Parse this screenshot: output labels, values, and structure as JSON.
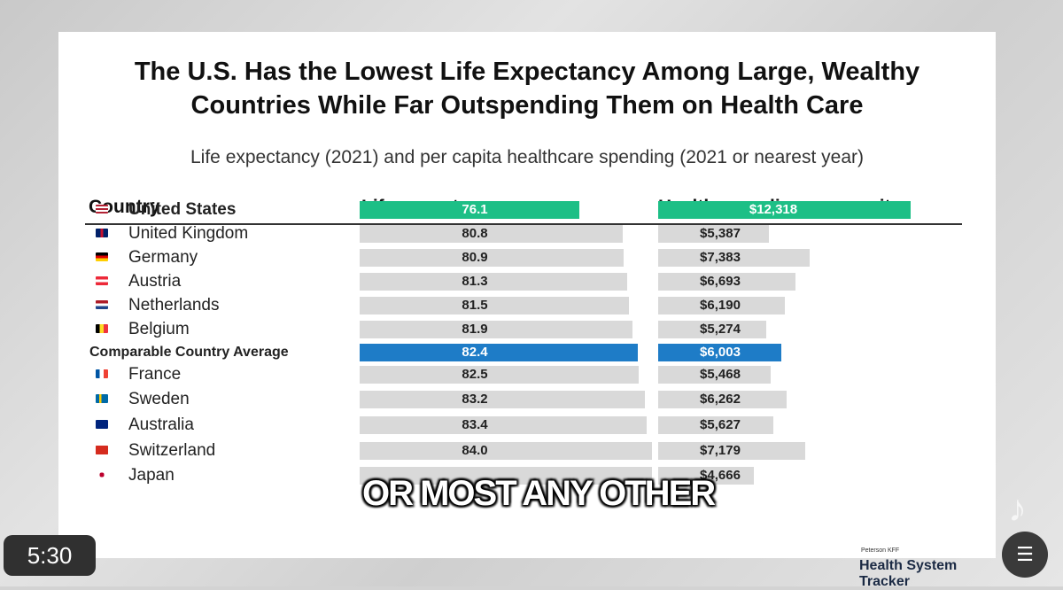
{
  "video": {
    "time": "5:30",
    "caption": "OR MOST ANY OTHER"
  },
  "chart_data": {
    "type": "bar",
    "title": "The U.S. Has the Lowest Life Expectancy Among Large, Wealthy Countries While Far Outspending Them on Health Care",
    "title_line1": "The U.S. Has the Lowest Life Expectancy Among Large, Wealthy",
    "title_line2": "Countries While Far Outspending Them on Health Care",
    "subtitle": "Life expectancy (2021) and per capita healthcare spending (2021 or nearest year)",
    "columns": [
      "Country",
      "Life expectancy",
      "Health spending, per capita"
    ],
    "categories": [
      "United States",
      "United Kingdom",
      "Germany",
      "Austria",
      "Netherlands",
      "Belgium",
      "Comparable Country Average",
      "France",
      "Sweden",
      "Australia",
      "Switzerland",
      "Japan"
    ],
    "series": [
      {
        "name": "Life expectancy",
        "values": [
          76.1,
          80.8,
          80.9,
          81.3,
          81.5,
          81.9,
          82.4,
          82.5,
          83.2,
          83.4,
          84.0,
          84.5
        ],
        "labels": [
          "76.1",
          "80.8",
          "80.9",
          "81.3",
          "81.5",
          "81.9",
          "82.4",
          "82.5",
          "83.2",
          "83.4",
          "84.0",
          ""
        ]
      },
      {
        "name": "Health spending, per capita",
        "values": [
          12318,
          5387,
          7383,
          6693,
          6190,
          5274,
          6003,
          5468,
          6262,
          5627,
          7179,
          4666
        ],
        "labels": [
          "$12,318",
          "$5,387",
          "$7,383",
          "$6,693",
          "$6,190",
          "$5,274",
          "$6,003",
          "$5,468",
          "$6,262",
          "$5,627",
          "$7,179",
          "$4,666"
        ]
      }
    ],
    "highlight": {
      "United States": "#1dbf86",
      "Comparable Country Average": "#1e7cc7"
    },
    "bar_color": "#d9d9d9",
    "source": {
      "brand_small": "Peterson KFF",
      "brand": "Health System Tracker"
    }
  }
}
